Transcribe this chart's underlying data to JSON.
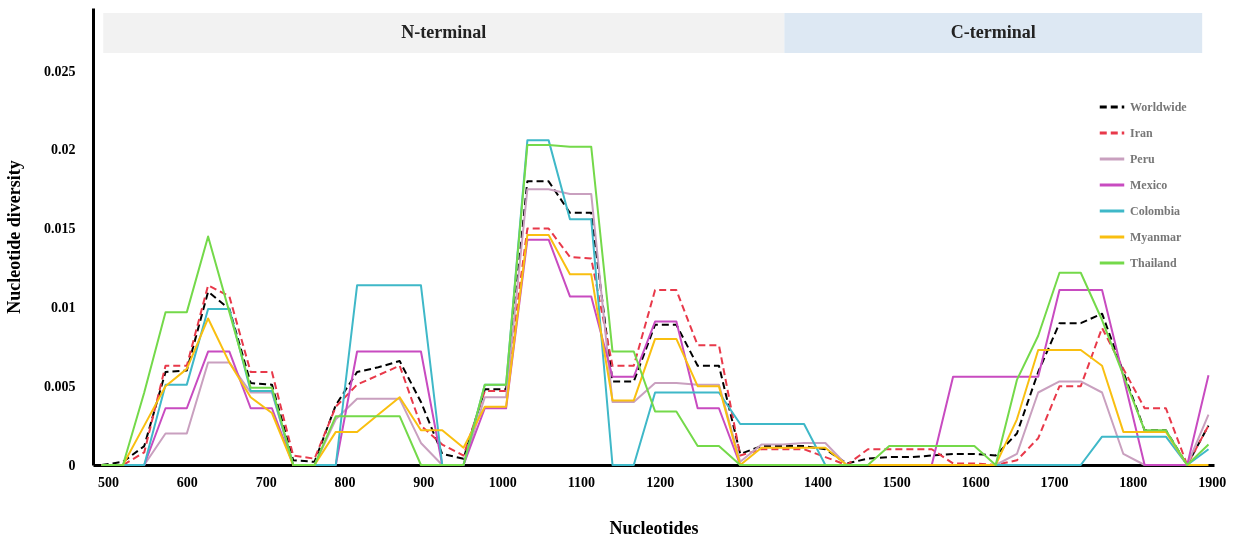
{
  "chart_data": {
    "type": "line",
    "xlabel": "Nucleotides",
    "ylabel": "Nucleotide diversity",
    "x": [
      492,
      519,
      546,
      573,
      600,
      627,
      654,
      681,
      708,
      735,
      762,
      789,
      816,
      843,
      870,
      897,
      924,
      951,
      978,
      1005,
      1032,
      1059,
      1086,
      1113,
      1140,
      1167,
      1194,
      1221,
      1248,
      1275,
      1302,
      1329,
      1356,
      1383,
      1410,
      1437,
      1464,
      1491,
      1518,
      1545,
      1572,
      1599,
      1626,
      1653,
      1680,
      1707,
      1734,
      1761,
      1788,
      1815,
      1842,
      1869,
      1896
    ],
    "series": [
      {
        "name": "Worldwide",
        "color": "#000000",
        "line_style": "dashed",
        "values": [
          0,
          0.0002,
          0.0012,
          0.0059,
          0.006,
          0.011,
          0.0099,
          0.0052,
          0.0051,
          0.0003,
          0.0002,
          0.0038,
          0.0059,
          0.0062,
          0.0066,
          0.004,
          0.0007,
          0.0004,
          0.0048,
          0.0048,
          0.018,
          0.018,
          0.016,
          0.016,
          0.0053,
          0.0053,
          0.0089,
          0.0089,
          0.0063,
          0.0063,
          0.0007,
          0.0012,
          0.0012,
          0.0012,
          0.001,
          0.0001,
          0.0004,
          0.0005,
          0.0005,
          0.0006,
          0.0007,
          0.0007,
          0.0006,
          0.002,
          0.0059,
          0.009,
          0.009,
          0.0096,
          0.0059,
          0.0022,
          0.0022,
          0,
          0.0025
        ]
      },
      {
        "name": "Iran",
        "color": "#e8394a",
        "line_style": "dashed",
        "values": [
          0,
          0,
          0.0008,
          0.0063,
          0.0063,
          0.0114,
          0.0107,
          0.0059,
          0.0059,
          0.0006,
          0.0004,
          0.0037,
          0.0051,
          0.0057,
          0.0063,
          0.0025,
          0.0013,
          0.0006,
          0.0047,
          0.0047,
          0.015,
          0.015,
          0.0132,
          0.0131,
          0.0063,
          0.0063,
          0.0111,
          0.0111,
          0.0076,
          0.0076,
          0.0006,
          0.001,
          0.001,
          0.001,
          0.0005,
          0,
          0.001,
          0.001,
          0.001,
          0.001,
          0.0001,
          0.0001,
          0,
          0.0003,
          0.0017,
          0.005,
          0.005,
          0.0087,
          0.0061,
          0.0036,
          0.0036,
          0,
          0.0025
        ]
      },
      {
        "name": "Peru",
        "color": "#c9a0bf",
        "line_style": "solid",
        "values": [
          0,
          0,
          0,
          0.002,
          0.002,
          0.0065,
          0.0065,
          0.0046,
          0.0046,
          0,
          0,
          0.0029,
          0.0042,
          0.0042,
          0.0042,
          0.0014,
          0,
          0,
          0.0043,
          0.0043,
          0.0175,
          0.0175,
          0.0172,
          0.0172,
          0.004,
          0.004,
          0.0052,
          0.0052,
          0.0051,
          0.0051,
          0.0002,
          0.0013,
          0.0013,
          0.0014,
          0.0014,
          0,
          0,
          0,
          0,
          0,
          0,
          0,
          0,
          0.0007,
          0.0046,
          0.0053,
          0.0053,
          0.0046,
          0.0007,
          0,
          0,
          0,
          0.0032
        ]
      },
      {
        "name": "Mexico",
        "color": "#c84bc0",
        "line_style": "solid",
        "values": [
          0,
          0,
          0,
          0.0036,
          0.0036,
          0.0072,
          0.0072,
          0.0036,
          0.0036,
          0,
          0,
          0,
          0.0072,
          0.0072,
          0.0072,
          0.0072,
          0,
          0,
          0.0036,
          0.0036,
          0.0143,
          0.0143,
          0.0107,
          0.0107,
          0.0056,
          0.0056,
          0.0091,
          0.0091,
          0.0036,
          0.0036,
          0,
          0,
          0,
          0,
          0,
          0,
          0,
          0,
          0,
          0,
          0.0056,
          0.0056,
          0.0056,
          0.0056,
          0.0056,
          0.0111,
          0.0111,
          0.0111,
          0.0056,
          0,
          0,
          0,
          0.0057
        ]
      },
      {
        "name": "Colombia",
        "color": "#3fb8c8",
        "line_style": "solid",
        "values": [
          0,
          0,
          0,
          0.0051,
          0.0051,
          0.0099,
          0.0099,
          0.0047,
          0.0047,
          0,
          0,
          0,
          0.0114,
          0.0114,
          0.0114,
          0.0114,
          0,
          0,
          0.0051,
          0.0051,
          0.0206,
          0.0206,
          0.0156,
          0.0156,
          0,
          0,
          0.0046,
          0.0046,
          0.0046,
          0.0046,
          0.0026,
          0.0026,
          0.0026,
          0.0026,
          0,
          0,
          0,
          0,
          0,
          0,
          0,
          0,
          0,
          0,
          0,
          0,
          0,
          0.0018,
          0.0018,
          0.0018,
          0.0018,
          0,
          0.001
        ]
      },
      {
        "name": "Myanmar",
        "color": "#f9bf10",
        "line_style": "solid",
        "values": [
          0,
          0,
          0.0025,
          0.005,
          0.0061,
          0.0093,
          0.0065,
          0.0043,
          0.0033,
          0,
          0,
          0.0021,
          0.0021,
          0.0032,
          0.0043,
          0.0022,
          0.0022,
          0.0011,
          0.0037,
          0.0037,
          0.0146,
          0.0146,
          0.0121,
          0.0121,
          0.0041,
          0.0041,
          0.008,
          0.008,
          0.005,
          0.005,
          0,
          0.0011,
          0.0011,
          0.0011,
          0.0011,
          0,
          0,
          0,
          0,
          0,
          0,
          0,
          0,
          0.0029,
          0.0073,
          0.0073,
          0.0073,
          0.0063,
          0.0021,
          0.0021,
          0.0021,
          0,
          0
        ]
      },
      {
        "name": "Thailand",
        "color": "#74d94a",
        "line_style": "solid",
        "values": [
          0,
          0,
          0.0046,
          0.0097,
          0.0097,
          0.0145,
          0.0097,
          0.0049,
          0.0049,
          0,
          0,
          0.0031,
          0.0031,
          0.0031,
          0.0031,
          0,
          0,
          0,
          0.0051,
          0.0051,
          0.0203,
          0.0203,
          0.0202,
          0.0202,
          0.0072,
          0.0072,
          0.0034,
          0.0034,
          0.0012,
          0.0012,
          0,
          0,
          0,
          0,
          0,
          0,
          0,
          0.0012,
          0.0012,
          0.0012,
          0.0012,
          0.0012,
          0,
          0.0054,
          0.0082,
          0.0122,
          0.0122,
          0.0092,
          0.0057,
          0.0022,
          0.0022,
          0,
          0.0013
        ]
      }
    ],
    "bands": [
      {
        "axis": "x",
        "from": 494,
        "to": 1358,
        "label": "N-terminal",
        "color": "#f2f2f2"
      },
      {
        "axis": "x",
        "from": 1358,
        "to": 1888,
        "label": "C-terminal",
        "color": "#dde8f3"
      }
    ],
    "xlim": [
      481,
      1903
    ],
    "xticks": [
      500,
      600,
      700,
      800,
      900,
      1000,
      1100,
      1200,
      1300,
      1400,
      1500,
      1600,
      1700,
      1800,
      1900
    ],
    "ylim": [
      0,
      0.029
    ],
    "yticks": [
      0,
      0.005,
      0.01,
      0.015,
      0.02,
      0.025
    ],
    "grid": false,
    "legend": "top right",
    "marker": "none"
  }
}
